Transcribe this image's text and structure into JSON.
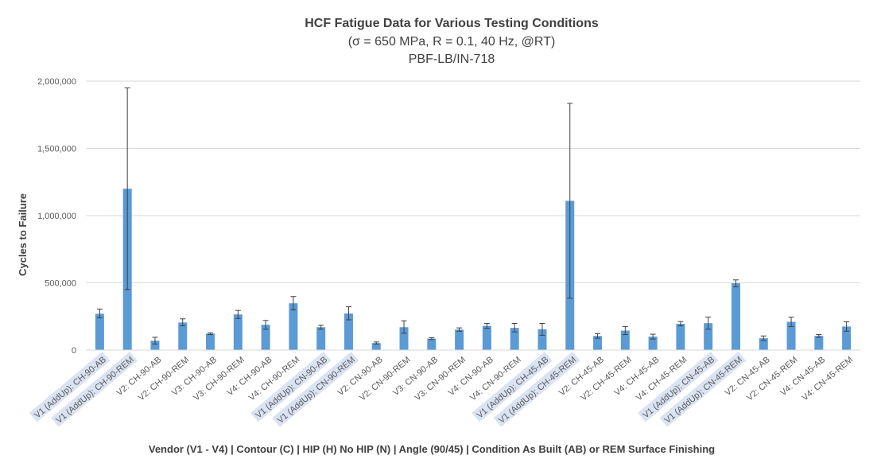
{
  "chart_data": {
    "type": "bar",
    "title": "HCF Fatigue Data for Various Testing Conditions",
    "subtitle_lines": [
      "(σ = 650 MPa, R = 0.1, 40 Hz, @RT)",
      "PBF-LB/IN-718"
    ],
    "xlabel": "Vendor (V1 - V4) | Contour (C) | HIP (H) No HIP (N) | Angle (90/45) | Condition As Built (AB) or REM Surface Finishing",
    "ylabel": "Cycles to Failure",
    "ylim": [
      0,
      2000000
    ],
    "yticks": [
      0,
      500000,
      1000000,
      1500000,
      2000000
    ],
    "ytick_labels": [
      "0",
      "500,000",
      "1,000,000",
      "1,500,000",
      "2,000,000"
    ],
    "grid": true,
    "bar_color": "#5b9bd5",
    "highlight_color": "#dae3f3",
    "categories": [
      "V1 (AddUp): CH-90-AB",
      "V1 (AddUp): CH-90-REM",
      "V2: CH-90-AB",
      "V2: CH-90-REM",
      "V3: CH-90-AB",
      "V3: CH-90-REM",
      "V4: CH-90-AB",
      "V4: CH-90-REM",
      "V1 (AddUp): CN-90-AB",
      "V1 (AddUp): CN-90-REM",
      "V2: CN-90-AB",
      "V2: CN-90-REM",
      "V3: CN-90-AB",
      "V3: CN-90-REM",
      "V4: CN-90-AB",
      "V4: CN-90-REM",
      "V1 (AddUp): CH-45-AB",
      "V1 (AddUp): CH-45-REM",
      "V2: CH-45-AB",
      "V2: CH-45-REM",
      "V4: CH-45-AB",
      "V4: CH-45-REM",
      "V1 (AddUp): CN-45-AB",
      "V1 (AddUp): CN-45-REM",
      "V2: CN-45-AB",
      "V2: CN-45-REM",
      "V4: CN-45-AB",
      "V4: CN-45-REM"
    ],
    "highlighted": [
      true,
      true,
      false,
      false,
      false,
      false,
      false,
      false,
      true,
      true,
      false,
      false,
      false,
      false,
      false,
      false,
      true,
      true,
      false,
      false,
      false,
      false,
      true,
      true,
      false,
      false,
      false,
      false
    ],
    "values": [
      270000,
      1200000,
      70000,
      205000,
      122000,
      265000,
      188000,
      348000,
      170000,
      272000,
      52000,
      170000,
      85000,
      152000,
      180000,
      165000,
      155000,
      1110000,
      105000,
      145000,
      100000,
      195000,
      200000,
      497000,
      88000,
      210000,
      105000,
      175000
    ],
    "error_low": [
      240000,
      450000,
      45000,
      180000,
      115000,
      235000,
      155000,
      300000,
      155000,
      225000,
      45000,
      125000,
      78000,
      140000,
      162000,
      135000,
      110000,
      385000,
      88000,
      115000,
      82000,
      180000,
      155000,
      470000,
      72000,
      175000,
      95000,
      140000
    ],
    "error_high": [
      305000,
      1950000,
      95000,
      232000,
      128000,
      295000,
      220000,
      398000,
      185000,
      322000,
      60000,
      218000,
      92000,
      165000,
      198000,
      198000,
      198000,
      1835000,
      122000,
      175000,
      118000,
      212000,
      245000,
      522000,
      105000,
      245000,
      115000,
      210000
    ]
  }
}
